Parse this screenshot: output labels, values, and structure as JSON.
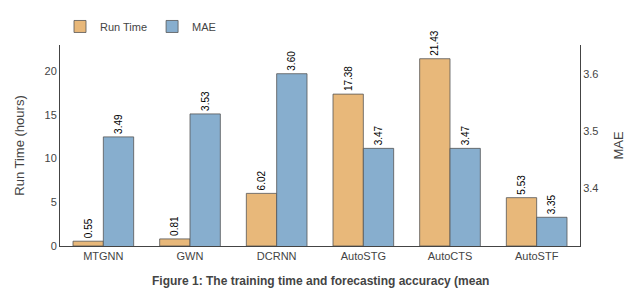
{
  "chart_data": {
    "type": "bar",
    "categories": [
      "MTGNN",
      "GWN",
      "DCRNN",
      "AutoSTG",
      "AutoCTS",
      "AutoSTF"
    ],
    "series": [
      {
        "name": "Run Time",
        "color": "#E8B87A",
        "values": [
          0.55,
          0.81,
          6.02,
          17.38,
          21.43,
          5.53
        ]
      },
      {
        "name": "MAE",
        "color": "#87AECE",
        "axis": "y2",
        "values": [
          3.49,
          3.53,
          3.6,
          3.47,
          3.47,
          3.35
        ],
        "value_labels": [
          "3.49",
          "3.53",
          "3.60",
          "3.47",
          "3.47",
          "3.35"
        ]
      }
    ],
    "ylabel": "Run Time (hours)",
    "y2label": "MAE",
    "ylim": [
      0,
      23
    ],
    "yticks": [
      0,
      5,
      10,
      15,
      20
    ],
    "y2lim": [
      3.3,
      3.65
    ],
    "y2ticks": [
      3.4,
      3.5,
      3.6
    ],
    "legend": "upper left",
    "data_labels": true,
    "grid": false,
    "caption": "Figure 1: The training time and forecasting accuracy (mean"
  }
}
